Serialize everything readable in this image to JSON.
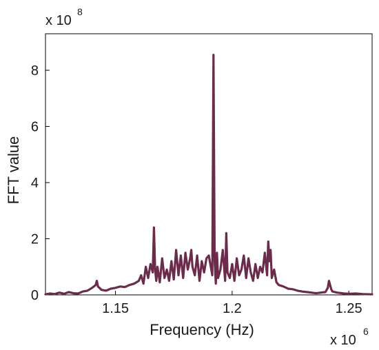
{
  "chart_data": {
    "type": "line",
    "xlabel": "Frequency (Hz)",
    "ylabel": "FFT value",
    "x_multiplier": {
      "base": "x 10",
      "exponent": "6"
    },
    "y_multiplier": {
      "base": "x 10",
      "exponent": "8"
    },
    "xlim": [
      1.12,
      1.26
    ],
    "ylim": [
      0,
      9.3
    ],
    "x_ticks": [
      {
        "value": 1.15,
        "label": "1.15"
      },
      {
        "value": 1.2,
        "label": "1.2"
      },
      {
        "value": 1.25,
        "label": "1.25"
      }
    ],
    "y_ticks": [
      {
        "value": 0,
        "label": "0"
      },
      {
        "value": 2,
        "label": "2"
      },
      {
        "value": 4,
        "label": "4"
      },
      {
        "value": 6,
        "label": "6"
      },
      {
        "value": 8,
        "label": "8"
      }
    ],
    "grid": false,
    "line_color": "#6b2c4b",
    "series": [
      {
        "x": [
          1.12,
          1.122,
          1.124,
          1.126,
          1.128,
          1.13,
          1.132,
          1.134,
          1.136,
          1.138,
          1.14,
          1.1415,
          1.142,
          1.1425,
          1.144,
          1.146,
          1.148,
          1.15,
          1.152,
          1.154,
          1.156,
          1.158,
          1.16,
          1.161,
          1.162,
          1.163,
          1.164,
          1.165,
          1.166,
          1.1665,
          1.167,
          1.1675,
          1.168,
          1.169,
          1.17,
          1.171,
          1.172,
          1.173,
          1.174,
          1.175,
          1.176,
          1.177,
          1.178,
          1.179,
          1.18,
          1.181,
          1.182,
          1.1825,
          1.183,
          1.184,
          1.185,
          1.186,
          1.187,
          1.188,
          1.189,
          1.19,
          1.1915,
          1.192,
          1.1925,
          1.193,
          1.1935,
          1.194,
          1.195,
          1.196,
          1.197,
          1.1975,
          1.198,
          1.199,
          1.2,
          1.201,
          1.202,
          1.203,
          1.204,
          1.205,
          1.206,
          1.207,
          1.208,
          1.209,
          1.21,
          1.211,
          1.212,
          1.213,
          1.214,
          1.215,
          1.2155,
          1.216,
          1.2165,
          1.217,
          1.218,
          1.219,
          1.22,
          1.222,
          1.224,
          1.226,
          1.228,
          1.23,
          1.232,
          1.234,
          1.236,
          1.238,
          1.24,
          1.241,
          1.2415,
          1.242,
          1.2425,
          1.243,
          1.245,
          1.248,
          1.25,
          1.253,
          1.256,
          1.26
        ],
        "y": [
          0.02,
          0.05,
          0.03,
          0.08,
          0.04,
          0.1,
          0.06,
          0.05,
          0.12,
          0.15,
          0.25,
          0.35,
          0.5,
          0.3,
          0.18,
          0.15,
          0.22,
          0.25,
          0.3,
          0.28,
          0.35,
          0.4,
          0.5,
          0.7,
          0.4,
          1.0,
          0.6,
          1.1,
          0.8,
          2.4,
          0.9,
          0.5,
          1.0,
          0.45,
          1.3,
          0.6,
          0.9,
          0.5,
          1.2,
          0.55,
          1.6,
          0.7,
          1.4,
          0.6,
          1.5,
          0.9,
          1.3,
          1.6,
          1.0,
          0.7,
          1.4,
          0.5,
          1.2,
          0.8,
          1.3,
          1.4,
          0.7,
          8.55,
          1.2,
          0.4,
          1.5,
          0.6,
          0.9,
          1.6,
          0.5,
          2.2,
          0.8,
          0.6,
          1.1,
          0.5,
          1.3,
          0.7,
          0.9,
          1.4,
          0.6,
          1.3,
          0.8,
          0.5,
          1.1,
          0.6,
          1.0,
          0.8,
          1.5,
          0.7,
          1.9,
          1.2,
          1.6,
          0.6,
          0.9,
          0.45,
          0.35,
          0.3,
          0.22,
          0.2,
          0.15,
          0.12,
          0.1,
          0.08,
          0.06,
          0.08,
          0.1,
          0.25,
          0.5,
          0.35,
          0.2,
          0.12,
          0.08,
          0.05,
          0.04,
          0.05,
          0.03,
          0.02
        ]
      }
    ]
  }
}
